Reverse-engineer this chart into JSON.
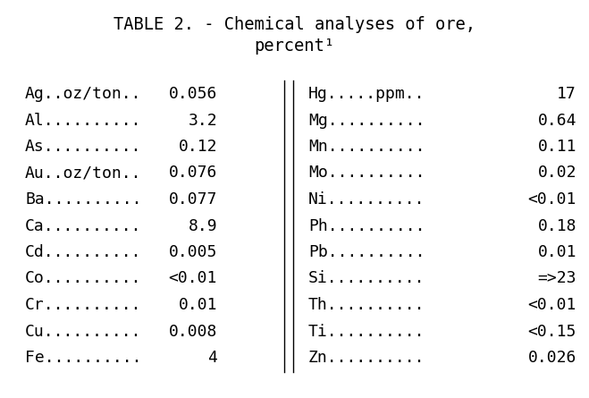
{
  "title_line1": "TABLE 2. - Chemical analyses of ore,",
  "title_line2": "percent¹",
  "left_col": [
    [
      "Ag..oz/ton..",
      "0.056"
    ],
    [
      "Al..........",
      "3.2"
    ],
    [
      "As..........",
      "0.12"
    ],
    [
      "Au..oz/ton..",
      "0.076"
    ],
    [
      "Ba..........",
      "0.077"
    ],
    [
      "Ca..........",
      "8.9"
    ],
    [
      "Cd..........",
      "0.005"
    ],
    [
      "Co..........",
      "<0.01"
    ],
    [
      "Cr..........",
      "0.01"
    ],
    [
      "Cu..........",
      "0.008"
    ],
    [
      "Fe..........",
      "4"
    ]
  ],
  "right_col": [
    [
      "Hg.....ppm..",
      "17"
    ],
    [
      "Mg..........",
      "0.64"
    ],
    [
      "Mn..........",
      "0.11"
    ],
    [
      "Mo..........",
      "0.02"
    ],
    [
      "Ni..........",
      "<0.01"
    ],
    [
      "Ph..........",
      "0.18"
    ],
    [
      "Pb..........",
      "0.01"
    ],
    [
      "Si..........",
      "=>23"
    ],
    [
      "Th..........",
      "<0.01"
    ],
    [
      "Ti..........",
      "<0.15"
    ],
    [
      "Zn..........",
      "0.026"
    ]
  ],
  "bg_color": "#ffffff",
  "text_color": "#000000",
  "font_size": 13.0,
  "title_font_size": 13.5
}
